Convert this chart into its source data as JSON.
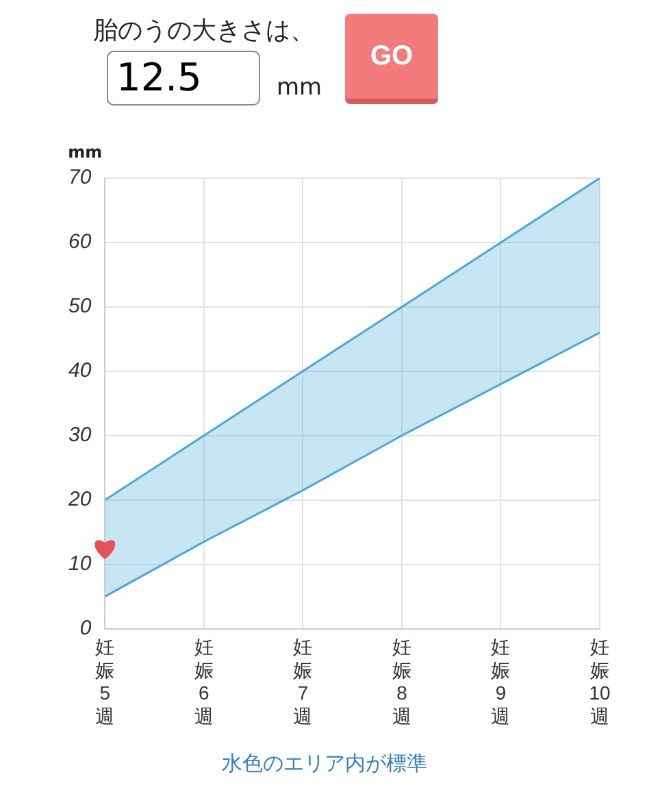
{
  "chart_data": {
    "type": "line",
    "ylabel": "mm",
    "annotations": [
      "胎のうの大きさは、",
      "12.5",
      "mm",
      "GO",
      "水色のエリア内が標準"
    ],
    "categories": [
      "妊娠5週",
      "妊娠6週",
      "妊娠7週",
      "妊娠8週",
      "妊娠9週",
      "妊娠10週"
    ],
    "ylim": [
      0,
      70
    ],
    "yticks": [
      0,
      10,
      20,
      30,
      40,
      50,
      60,
      70
    ],
    "grid": true,
    "series": [
      {
        "type": "line",
        "color": "#4aa8d8",
        "values": [
          5,
          13.5,
          21.5,
          30,
          38,
          46
        ]
      },
      {
        "type": "area",
        "color": "#4aa8d8",
        "values": [
          20,
          30,
          40,
          50,
          60,
          70
        ]
      },
      {
        "type": "scatter",
        "color": "#e8505b",
        "x": [
          "妊娠5週"
        ],
        "values": [
          12.5
        ]
      }
    ]
  }
}
